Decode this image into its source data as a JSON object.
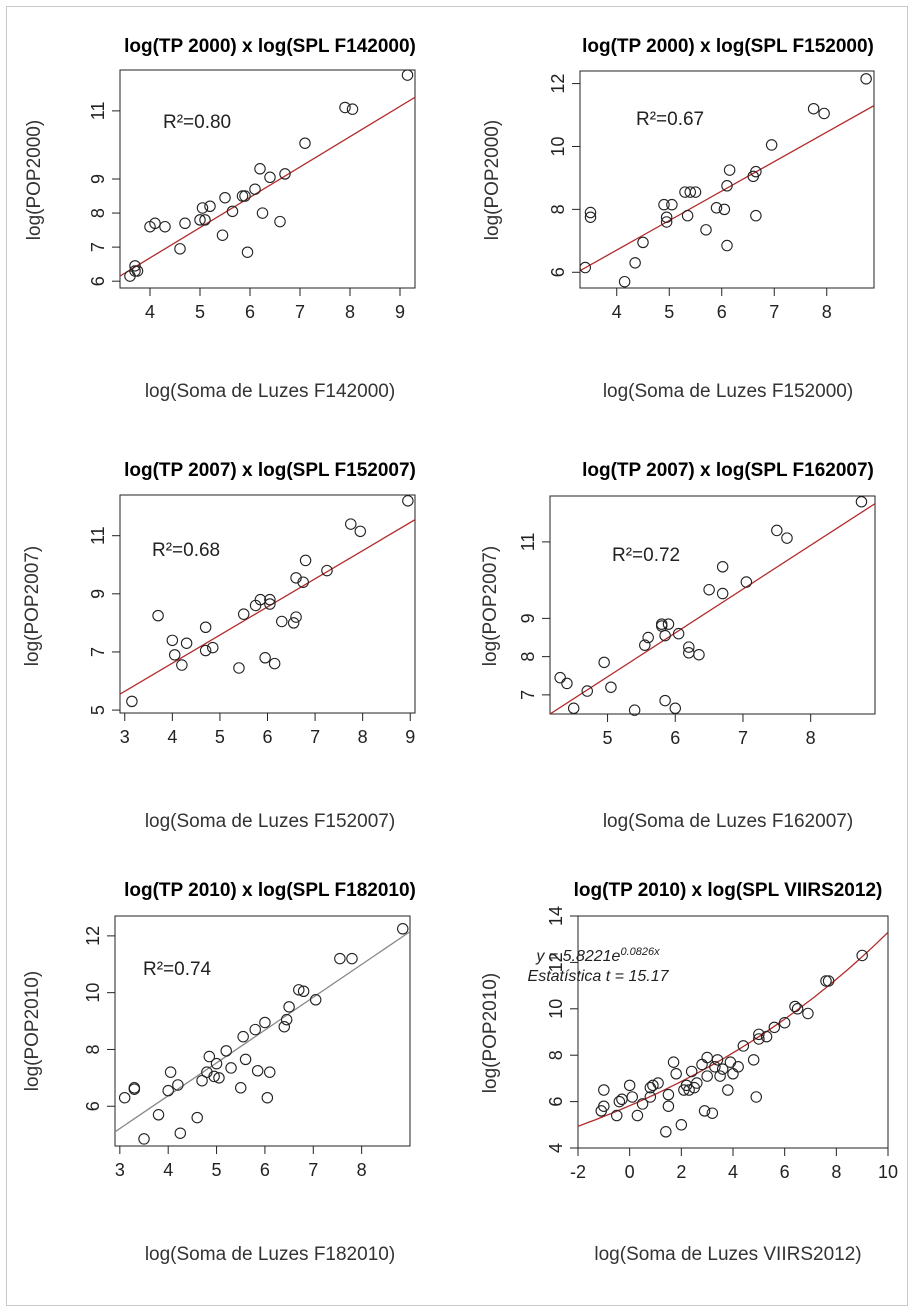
{
  "chart_data": [
    {
      "type": "scatter",
      "title": "log(TP 2000) x log(SPL F142000)",
      "xlabel": "log(Soma de Luzes F142000)",
      "ylabel": "log(POP2000)",
      "annotation": "R²=0.80",
      "xlim": [
        3.4,
        9.3
      ],
      "ylim": [
        5.8,
        12.2
      ],
      "xticks": [
        4,
        5,
        6,
        7,
        8,
        9
      ],
      "yticks": [
        6,
        7,
        8,
        9,
        11
      ],
      "fit": {
        "kind": "linear",
        "x": [
          3.4,
          9.3
        ],
        "y": [
          6.15,
          11.4
        ],
        "color": "#b22a2a"
      },
      "points": {
        "x": [
          3.6,
          3.7,
          3.7,
          3.75,
          4.0,
          4.1,
          4.3,
          4.6,
          4.7,
          5.0,
          5.05,
          5.1,
          5.2,
          5.45,
          5.5,
          5.65,
          5.85,
          5.9,
          5.95,
          6.1,
          6.2,
          6.25,
          6.4,
          6.6,
          6.7,
          7.1,
          7.9,
          8.05,
          9.15
        ],
        "y": [
          6.15,
          6.3,
          6.45,
          6.3,
          7.6,
          7.7,
          7.6,
          6.95,
          7.7,
          7.8,
          8.15,
          7.8,
          8.2,
          7.35,
          8.45,
          8.05,
          8.5,
          8.5,
          6.85,
          8.7,
          9.3,
          8.0,
          9.05,
          7.75,
          9.15,
          10.05,
          11.1,
          11.05,
          12.05
        ]
      }
    },
    {
      "type": "scatter",
      "title": "log(TP 2000) x log(SPL F152000)",
      "xlabel": "log(Soma de Luzes F152000)",
      "ylabel": "log(POP2000)",
      "annotation": "R²=0.67",
      "xlim": [
        3.3,
        8.9
      ],
      "ylim": [
        5.5,
        12.4
      ],
      "xticks": [
        4,
        5,
        6,
        7,
        8
      ],
      "yticks": [
        6,
        8,
        10,
        12
      ],
      "fit": {
        "kind": "linear",
        "x": [
          3.3,
          8.9
        ],
        "y": [
          6.05,
          11.3
        ],
        "color": "#b22a2a"
      },
      "points": {
        "x": [
          3.4,
          3.5,
          3.5,
          4.15,
          4.35,
          4.5,
          4.9,
          4.95,
          4.95,
          5.05,
          5.3,
          5.35,
          5.4,
          5.5,
          5.7,
          5.9,
          6.05,
          6.1,
          6.1,
          6.15,
          6.6,
          6.65,
          6.65,
          6.95,
          7.75,
          7.95,
          8.75
        ],
        "y": [
          6.15,
          7.9,
          7.75,
          5.7,
          6.3,
          6.95,
          8.15,
          7.6,
          7.75,
          8.15,
          8.55,
          7.8,
          8.55,
          8.55,
          7.35,
          8.05,
          8.0,
          6.85,
          8.75,
          9.25,
          9.05,
          9.2,
          7.8,
          10.05,
          11.2,
          11.05,
          12.15
        ]
      }
    },
    {
      "type": "scatter",
      "title": "log(TP 2007) x log(SPL F152007)",
      "xlabel": "log(Soma de Luzes F152007)",
      "ylabel": "log(POP2007)",
      "annotation": "R²=0.68",
      "xlim": [
        2.9,
        9.1
      ],
      "ylim": [
        4.9,
        12.4
      ],
      "xticks": [
        3,
        4,
        5,
        6,
        7,
        8,
        9
      ],
      "yticks": [
        5,
        7,
        9,
        11
      ],
      "fit": {
        "kind": "linear",
        "x": [
          2.9,
          9.1
        ],
        "y": [
          5.55,
          11.55
        ],
        "color": "#b22a2a"
      },
      "points": {
        "x": [
          3.15,
          3.7,
          4.0,
          4.05,
          4.2,
          4.3,
          4.7,
          4.7,
          4.85,
          5.4,
          5.5,
          5.75,
          5.85,
          5.95,
          6.05,
          6.05,
          6.15,
          6.3,
          6.55,
          6.6,
          6.6,
          6.75,
          6.8,
          7.25,
          7.75,
          7.95,
          8.95
        ],
        "y": [
          5.3,
          8.25,
          7.4,
          6.9,
          6.55,
          7.3,
          7.85,
          7.05,
          7.15,
          6.45,
          8.3,
          8.6,
          8.8,
          6.8,
          8.8,
          8.65,
          6.6,
          8.05,
          8.0,
          8.2,
          9.55,
          9.4,
          10.15,
          9.8,
          11.4,
          11.15,
          12.2
        ]
      }
    },
    {
      "type": "scatter",
      "title": "log(TP 2007) x log(SPL F162007)",
      "xlabel": "log(Soma de Luzes F162007)",
      "ylabel": "log(POP2007)",
      "annotation": "R²=0.72",
      "xlim": [
        4.15,
        8.95
      ],
      "ylim": [
        6.5,
        12.2
      ],
      "xticks": [
        5,
        6,
        7,
        8
      ],
      "yticks": [
        7,
        8,
        9,
        11
      ],
      "fit": {
        "kind": "linear",
        "x": [
          4.15,
          8.95
        ],
        "y": [
          6.5,
          12.0
        ],
        "color": "#b22a2a"
      },
      "points": {
        "x": [
          4.3,
          4.4,
          4.5,
          4.7,
          4.95,
          5.05,
          5.4,
          5.55,
          5.6,
          5.8,
          5.8,
          5.85,
          5.85,
          5.9,
          6.0,
          6.05,
          6.2,
          6.2,
          6.35,
          6.5,
          6.7,
          6.7,
          7.05,
          7.5,
          7.65,
          8.75
        ],
        "y": [
          7.45,
          7.3,
          6.65,
          7.1,
          7.85,
          7.2,
          6.6,
          8.3,
          8.5,
          8.85,
          8.8,
          8.55,
          6.85,
          8.85,
          6.65,
          8.6,
          8.1,
          8.25,
          8.05,
          9.75,
          9.65,
          10.35,
          9.95,
          11.3,
          11.1,
          12.05
        ]
      }
    },
    {
      "type": "scatter",
      "title": "log(TP 2010) x log(SPL F182010)",
      "xlabel": "log(Soma de Luzes F182010)",
      "ylabel": "log(POP2010)",
      "annotation": "R²=0.74",
      "xlim": [
        2.9,
        9.0
      ],
      "ylim": [
        4.6,
        12.7
      ],
      "xticks": [
        3,
        4,
        5,
        6,
        7,
        8
      ],
      "yticks": [
        6,
        8,
        10,
        12
      ],
      "fit": {
        "kind": "linear",
        "x": [
          2.9,
          9.0
        ],
        "y": [
          5.1,
          12.15
        ],
        "color": "#888888"
      },
      "points": {
        "x": [
          3.1,
          3.3,
          3.3,
          3.5,
          3.8,
          4.0,
          4.05,
          4.2,
          4.25,
          4.6,
          4.7,
          4.8,
          4.85,
          4.95,
          5.0,
          5.05,
          5.2,
          5.3,
          5.5,
          5.55,
          5.6,
          5.8,
          5.85,
          6.0,
          6.05,
          6.1,
          6.4,
          6.45,
          6.5,
          6.7,
          6.8,
          7.05,
          7.55,
          7.8,
          8.85
        ],
        "y": [
          6.3,
          6.65,
          6.6,
          4.85,
          5.7,
          6.55,
          7.2,
          6.75,
          5.05,
          5.6,
          6.9,
          7.2,
          7.75,
          7.05,
          7.5,
          7.0,
          7.95,
          7.35,
          6.65,
          8.45,
          7.65,
          8.7,
          7.25,
          8.95,
          6.3,
          7.2,
          8.8,
          9.05,
          9.5,
          10.1,
          10.05,
          9.75,
          11.2,
          11.2,
          12.25
        ]
      }
    },
    {
      "type": "scatter",
      "title": "log(TP 2010) x log(SPL VIIRS2012)",
      "xlabel": "log(Soma de Luzes VIIRS2012)",
      "ylabel": "log(POP2010)",
      "annotation": "y = 5.8221e0.0826x",
      "annotation2": "Estatística t = 15.17",
      "xlim": [
        -2.0,
        10.0
      ],
      "ylim": [
        4.0,
        14.0
      ],
      "xticks": [
        -2,
        0,
        2,
        4,
        6,
        8,
        10
      ],
      "yticks": [
        4,
        6,
        8,
        10,
        12,
        14
      ],
      "fit": {
        "kind": "exponential",
        "a": 5.8221,
        "b": 0.0826,
        "color": "#b22a2a"
      },
      "points": {
        "x": [
          -1.1,
          -1.0,
          -1.0,
          -0.5,
          -0.4,
          -0.3,
          0.0,
          0.1,
          0.3,
          0.5,
          0.8,
          0.8,
          0.9,
          1.1,
          1.4,
          1.5,
          1.5,
          1.7,
          1.8,
          2.0,
          2.1,
          2.2,
          2.3,
          2.4,
          2.5,
          2.6,
          2.8,
          2.9,
          3.0,
          3.0,
          3.2,
          3.3,
          3.4,
          3.5,
          3.6,
          3.8,
          3.9,
          4.0,
          4.2,
          4.4,
          4.8,
          4.9,
          5.0,
          5.0,
          5.3,
          5.6,
          6.0,
          6.4,
          6.5,
          6.9,
          7.6,
          7.7,
          9.0
        ],
        "y": [
          5.6,
          6.5,
          5.8,
          5.4,
          6.0,
          6.1,
          6.7,
          6.2,
          5.4,
          5.9,
          6.6,
          6.2,
          6.7,
          6.8,
          4.7,
          6.3,
          5.8,
          7.7,
          7.2,
          5.0,
          6.5,
          6.7,
          6.5,
          7.3,
          6.6,
          6.8,
          7.6,
          5.6,
          7.1,
          7.9,
          5.5,
          7.5,
          7.8,
          7.1,
          7.4,
          6.5,
          7.7,
          7.2,
          7.5,
          8.4,
          7.8,
          6.2,
          8.9,
          8.7,
          8.8,
          9.2,
          9.4,
          10.1,
          10.0,
          9.8,
          11.2,
          11.2,
          12.3
        ]
      }
    }
  ]
}
